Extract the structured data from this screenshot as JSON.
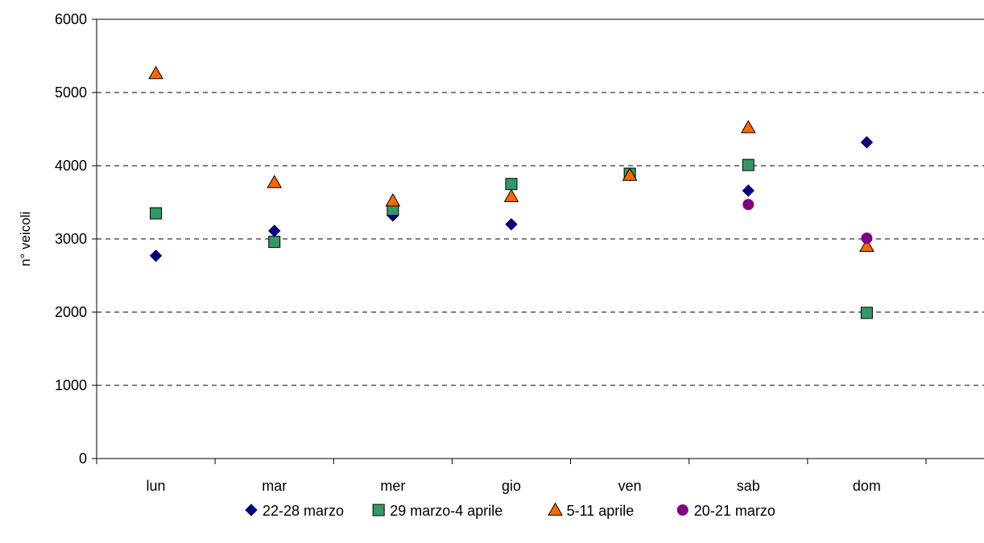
{
  "chart_data": {
    "type": "scatter",
    "title": "",
    "xlabel": "",
    "ylabel": "n° veicoli",
    "categories": [
      "lun",
      "mar",
      "mer",
      "gio",
      "ven",
      "sab",
      "dom"
    ],
    "ylim": [
      0,
      6000
    ],
    "yticks": [
      0,
      1000,
      2000,
      3000,
      4000,
      5000,
      6000
    ],
    "grid": "horizontal-dashed",
    "legend_position": "bottom",
    "series": [
      {
        "name": "22-28 marzo",
        "marker": "diamond",
        "color": "#000080",
        "values": [
          2770,
          3110,
          3320,
          3200,
          3870,
          3660,
          4320
        ]
      },
      {
        "name": "29 marzo-4 aprile",
        "marker": "square",
        "color": "#339966",
        "values": [
          3350,
          2960,
          3400,
          3750,
          3890,
          4010,
          1990
        ]
      },
      {
        "name": "5-11 aprile",
        "marker": "triangle",
        "color": "#FF6600",
        "values": [
          5260,
          3770,
          3520,
          3580,
          3870,
          4520,
          2900
        ]
      },
      {
        "name": "20-21 marzo",
        "marker": "circle",
        "color": "#800080",
        "values": [
          null,
          null,
          null,
          null,
          null,
          3470,
          3010
        ]
      }
    ]
  }
}
